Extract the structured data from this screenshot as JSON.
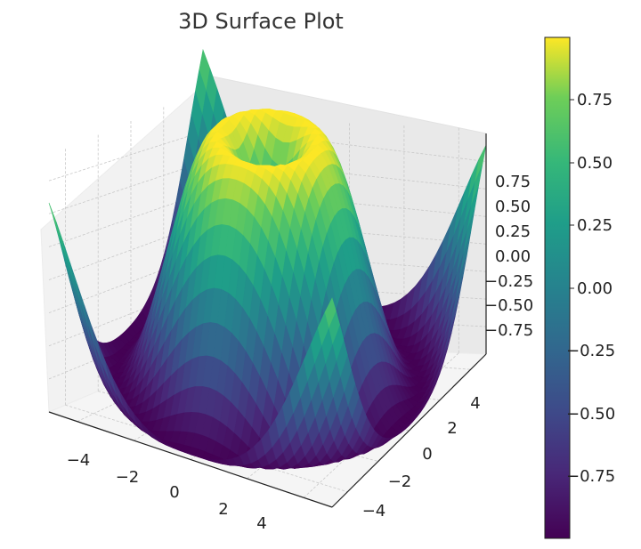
{
  "chart_data": {
    "type": "surface",
    "title": "3D Surface Plot",
    "function": "sin(sqrt(x^2 + y^2))",
    "colormap": "viridis",
    "x_range": [
      -5,
      5
    ],
    "y_range": [
      -5,
      5
    ],
    "z_range": [
      -1,
      1
    ],
    "x_ticks": [
      "−4",
      "−2",
      "0",
      "2",
      "4"
    ],
    "y_ticks": [
      "−4",
      "−2",
      "0",
      "2",
      "4"
    ],
    "z_ticks": [
      "0.75",
      "0.50",
      "0.25",
      "0.00",
      "−0.25",
      "−0.50",
      "−0.75"
    ],
    "colorbar_ticks": [
      "0.75",
      "0.50",
      "0.25",
      "0.00",
      "−0.25",
      "−0.50",
      "−0.75"
    ],
    "grid": true
  }
}
